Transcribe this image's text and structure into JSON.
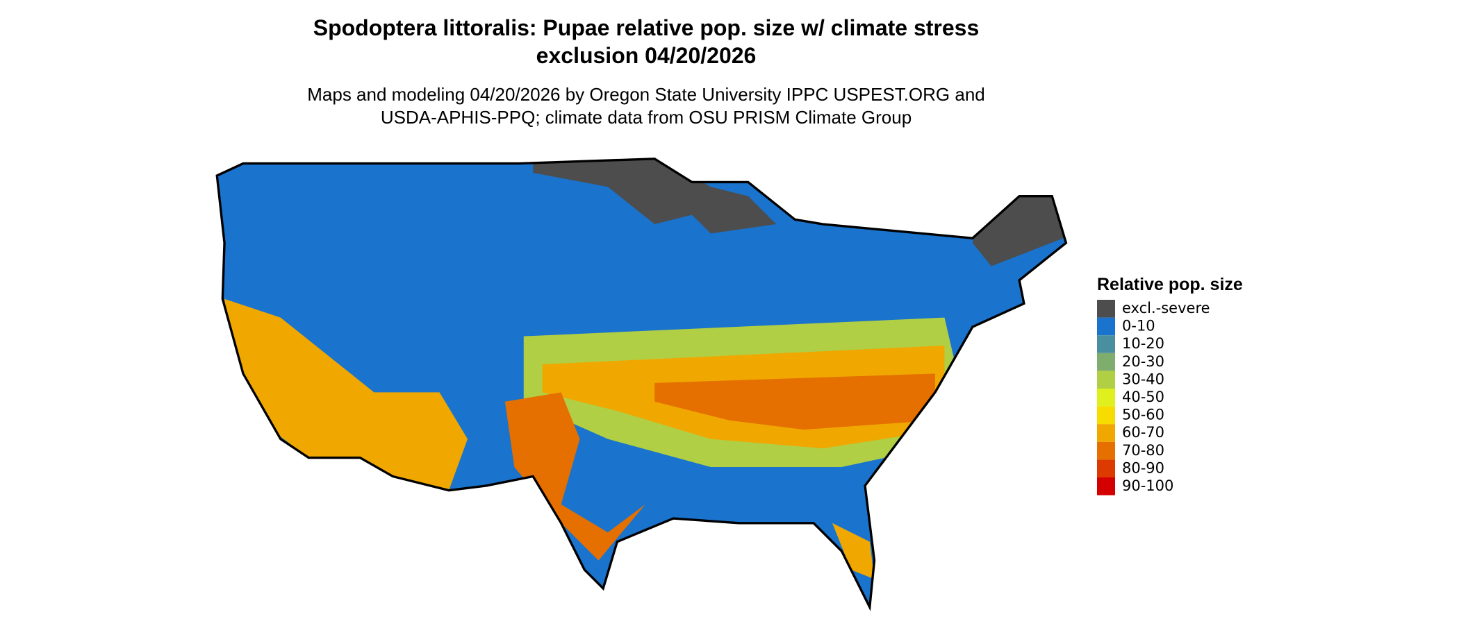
{
  "title": "Spodoptera littoralis: Pupae relative pop. size w/ climate stress exclusion 04/20/2026",
  "subtitle": "Maps and modeling 04/20/2026 by Oregon State University IPPC USPEST.ORG and USDA-APHIS-PPQ; climate data from OSU PRISM Climate Group",
  "legend": {
    "title": "Relative pop. size",
    "items": [
      {
        "label": "excl.-severe",
        "color": "#4d4d4d"
      },
      {
        "label": "0-10",
        "color": "#1a73cc"
      },
      {
        "label": "10-20",
        "color": "#4a8fa0"
      },
      {
        "label": "20-30",
        "color": "#7fad6e"
      },
      {
        "label": "30-40",
        "color": "#b0cf45"
      },
      {
        "label": "40-50",
        "color": "#e0ef1e"
      },
      {
        "label": "50-60",
        "color": "#f7dc00"
      },
      {
        "label": "60-70",
        "color": "#f0a800"
      },
      {
        "label": "70-80",
        "color": "#e57000"
      },
      {
        "label": "80-90",
        "color": "#dd3a00"
      },
      {
        "label": "90-100",
        "color": "#d40000"
      }
    ]
  }
}
